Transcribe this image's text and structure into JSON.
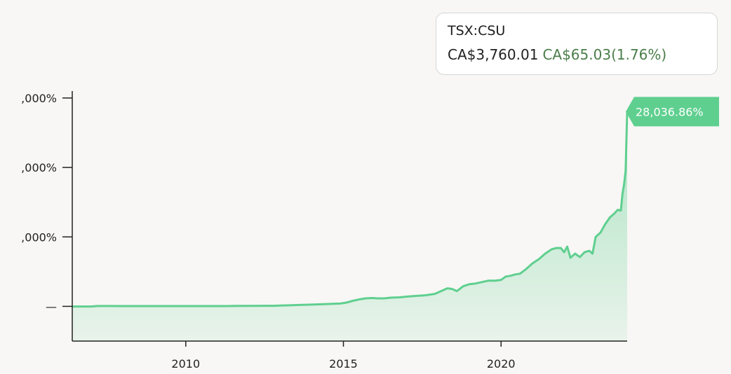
{
  "ticker": {
    "symbol": "TSX:CSU",
    "price": "CA$3,760.01",
    "change": "CA$65.03(1.76%)"
  },
  "colors": {
    "line": "#5fcf8f",
    "badge": "#5fcf8f",
    "change_text": "#4a7d4a",
    "background": "#f8f7f5"
  },
  "chart_data": {
    "type": "area",
    "series": [
      {
        "x": [
          2006.4,
          2007.0,
          2007.2,
          2007.5,
          2008.0,
          2008.5,
          2009.0,
          2009.5,
          2010.0,
          2010.5,
          2011.0,
          2011.3,
          2011.6,
          2012.0,
          2012.5,
          2012.8,
          2013.0,
          2013.3,
          2013.6,
          2014.0,
          2014.3,
          2014.6,
          2014.9,
          2015.1,
          2015.3,
          2015.5,
          2015.7,
          2015.9,
          2016.1,
          2016.3,
          2016.5,
          2016.8,
          2017.0,
          2017.3,
          2017.6,
          2017.9,
          2018.1,
          2018.3,
          2018.45,
          2018.6,
          2018.8,
          2019.0,
          2019.2,
          2019.4,
          2019.6,
          2019.8,
          2020.0,
          2020.15,
          2020.3,
          2020.45,
          2020.6,
          2020.8,
          2021.0,
          2021.2,
          2021.4,
          2021.6,
          2021.75,
          2021.9,
          2022.0,
          2022.1,
          2022.2,
          2022.35,
          2022.5,
          2022.65,
          2022.8,
          2022.9,
          2023.0,
          2023.15,
          2023.3,
          2023.45,
          2023.6,
          2023.7,
          2023.8,
          2023.85,
          2023.9,
          2023.95,
          2024.0
        ],
        "y": [
          -20,
          -20,
          50,
          50,
          40,
          40,
          40,
          40,
          40,
          40,
          40,
          40,
          70,
          70,
          80,
          80,
          120,
          150,
          200,
          250,
          300,
          350,
          400,
          550,
          800,
          1000,
          1150,
          1200,
          1150,
          1150,
          1250,
          1300,
          1400,
          1500,
          1600,
          1800,
          2200,
          2600,
          2500,
          2200,
          2900,
          3200,
          3300,
          3500,
          3700,
          3700,
          3800,
          4300,
          4400,
          4600,
          4700,
          5400,
          6200,
          6800,
          7600,
          8200,
          8400,
          8400,
          7800,
          8600,
          7000,
          7600,
          7100,
          7800,
          8000,
          7600,
          10000,
          10600,
          11800,
          12800,
          13400,
          13900,
          13800,
          16200,
          17500,
          19500,
          28036.86
        ]
      }
    ],
    "xlim": [
      2006.4,
      2024.0
    ],
    "ylim": [
      -5000,
      31000
    ],
    "x_ticks": [
      2010,
      2015,
      2020
    ],
    "x_tick_labels": [
      "2010",
      "2015",
      "2020"
    ],
    "y_ticks": [
      0,
      10000,
      20000,
      30000
    ],
    "y_tick_labels": [
      "—",
      ",000%",
      ",000%",
      ",000%"
    ],
    "last_value_label": "28,036.86%"
  }
}
